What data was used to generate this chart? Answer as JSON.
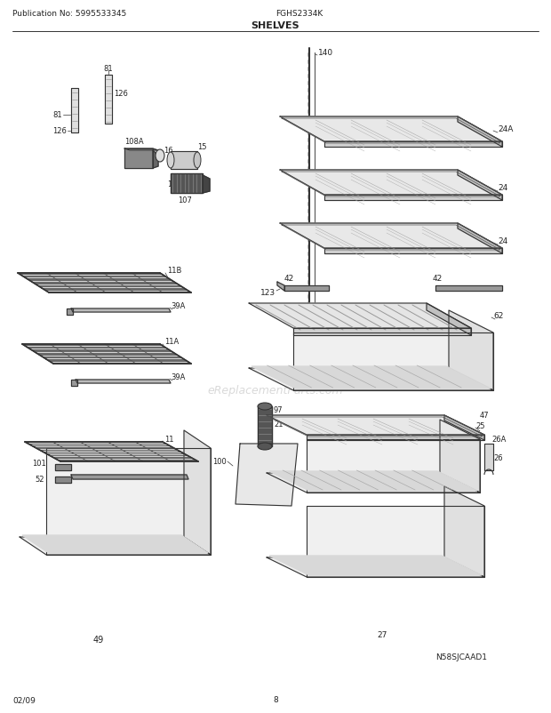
{
  "title": "SHELVES",
  "subtitle": "FGHS2334K",
  "pub_no": "Publication No: 5995533345",
  "date": "02/09",
  "page": "8",
  "diagram_id": "N58SJCAAD1",
  "watermark": "eReplacementParts.com",
  "bg_color": "#ffffff",
  "line_color": "#333333",
  "label_color": "#222222",
  "font_size": 6.5,
  "title_font_size": 8,
  "header_font_size": 6.5
}
